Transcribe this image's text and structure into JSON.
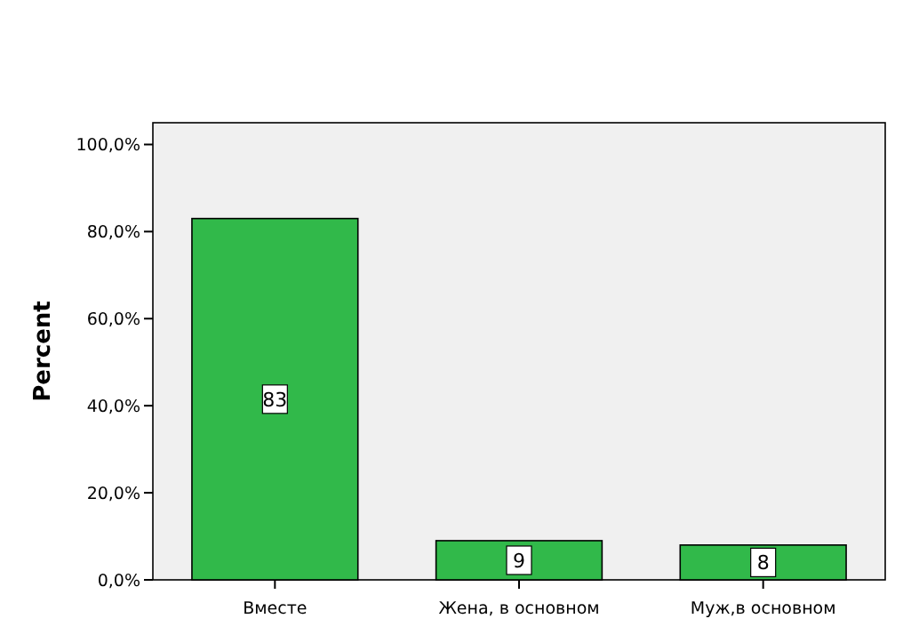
{
  "chart_data": {
    "type": "bar",
    "ylabel": "Percent",
    "categories": [
      "Вместе",
      "Жена, в основном",
      "Муж,в основном"
    ],
    "values": [
      83,
      9,
      8
    ],
    "color": "#31b94a",
    "ylim": [
      0,
      105
    ],
    "yticks": [
      {
        "value": 0,
        "label": "0,0%"
      },
      {
        "value": 20,
        "label": "20,0%"
      },
      {
        "value": 40,
        "label": "40,0%"
      },
      {
        "value": 60,
        "label": "60,0%"
      },
      {
        "value": 80,
        "label": "80,0%"
      },
      {
        "value": 100,
        "label": "100,0%"
      }
    ],
    "data_labels": true
  }
}
